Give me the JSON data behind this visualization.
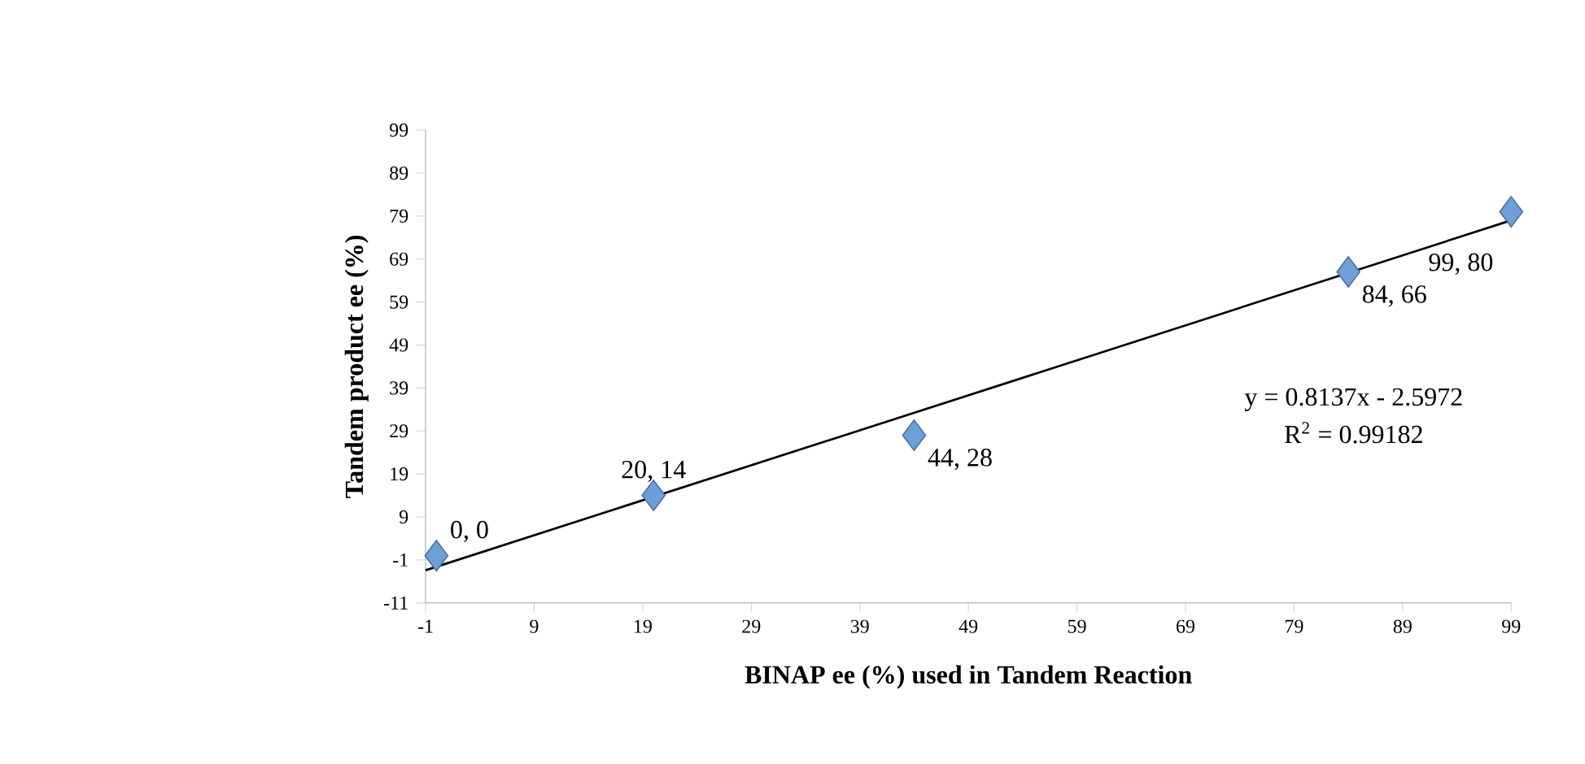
{
  "chart_data": {
    "type": "scatter",
    "xlabel": "BINAP ee (%) used in Tandem Reaction",
    "ylabel": "Tandem product  ee (%)",
    "xlim": [
      -1,
      99
    ],
    "ylim": [
      -11,
      99
    ],
    "xticks": [
      -1,
      9,
      19,
      29,
      39,
      49,
      59,
      69,
      79,
      89,
      99
    ],
    "yticks": [
      -11,
      -1,
      9,
      19,
      29,
      39,
      49,
      59,
      69,
      79,
      89,
      99
    ],
    "series": [
      {
        "color": "#6f9fd8",
        "marker": "diamond",
        "x": [
          0,
          20,
          44,
          84,
          99
        ],
        "values": [
          0,
          14,
          28,
          66,
          80
        ],
        "value_labels": [
          "0, 0",
          "20, 14",
          "44, 28",
          "84, 66",
          "99, 80"
        ]
      },
      {
        "type": "line",
        "color": "#000000",
        "marker": "none",
        "x": [
          -1,
          99
        ],
        "values": [
          -3.4,
          78
        ]
      }
    ],
    "annotations": [
      "y = 0.8137x - 2.5972",
      "R$^{2}$ = 0.99182"
    ]
  }
}
